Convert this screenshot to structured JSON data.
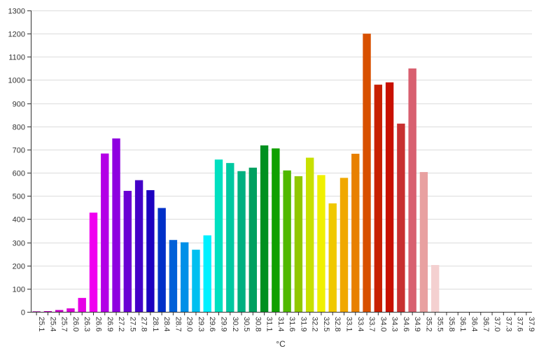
{
  "chart_data": {
    "type": "bar",
    "title": "",
    "xlabel": "°C",
    "ylabel": "",
    "ylim": [
      0,
      1300
    ],
    "yticks": [
      0,
      100,
      200,
      300,
      400,
      500,
      600,
      700,
      800,
      900,
      1000,
      1100,
      1200,
      1300
    ],
    "grid": true,
    "legend": "none",
    "categories": [
      "25.1",
      "25.4",
      "25.7",
      "26.0",
      "26.3",
      "26.6",
      "26.9",
      "27.2",
      "27.5",
      "27.8",
      "28.1",
      "28.4",
      "28.7",
      "29.0",
      "29.3",
      "29.6",
      "29.9",
      "30.2",
      "30.5",
      "30.8",
      "31.1",
      "31.4",
      "31.6",
      "31.9",
      "32.2",
      "32.5",
      "32.8",
      "33.1",
      "33.4",
      "33.7",
      "34.0",
      "34.3",
      "34.6",
      "34.9",
      "35.2",
      "35.5",
      "35.8",
      "36.1",
      "36.4",
      "36.7",
      "37.0",
      "37.3",
      "37.6",
      "37.9"
    ],
    "values": [
      2,
      3,
      8,
      15,
      60,
      428,
      683,
      748,
      522,
      568,
      525,
      448,
      310,
      300,
      268,
      330,
      657,
      642,
      607,
      622,
      718,
      705,
      610,
      585,
      665,
      590,
      468,
      578,
      682,
      1200,
      980,
      990,
      812,
      1050,
      603,
      202,
      0,
      0,
      0,
      0,
      0,
      0,
      0,
      0
    ],
    "colors": [
      "#9a009a",
      "#b300b3",
      "#c800c8",
      "#d800d8",
      "#e600e6",
      "#f000f0",
      "#b300e6",
      "#8e00e0",
      "#6a00d4",
      "#4400c8",
      "#1c00c0",
      "#0030c8",
      "#0060d8",
      "#0090e8",
      "#00c0f0",
      "#00f0ff",
      "#00e0c0",
      "#00c8a0",
      "#00b080",
      "#00a060",
      "#009020",
      "#10a000",
      "#50b800",
      "#90c800",
      "#c8e000",
      "#f0f000",
      "#f0c800",
      "#f0a800",
      "#e88000",
      "#d85000",
      "#c82000",
      "#c81000",
      "#c83030",
      "#d86070",
      "#e8a0a0",
      "#f4d0d0",
      "#ffffff",
      "#ffffff",
      "#ffffff",
      "#ffffff",
      "#ffffff",
      "#ffffff",
      "#ffffff",
      "#ffffff"
    ]
  }
}
